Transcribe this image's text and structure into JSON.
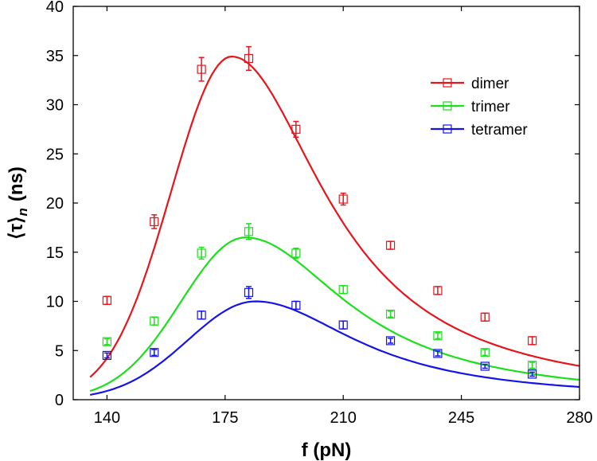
{
  "chart_data": {
    "type": "scatter",
    "title": "",
    "xlabel": "f (pN)",
    "ylabel_main": "⟨τ⟩",
    "ylabel_sub": "n",
    "ylabel_unit": "(ns)",
    "xlim": [
      130,
      280
    ],
    "ylim": [
      0,
      40
    ],
    "xticks": [
      140,
      175,
      210,
      245,
      280
    ],
    "yticks": [
      0,
      5,
      10,
      15,
      20,
      25,
      30,
      35,
      40
    ],
    "grid": false,
    "legend_position": "top-right",
    "x": [
      140,
      154,
      168,
      182,
      196,
      210,
      224,
      238,
      252,
      266
    ],
    "series": [
      {
        "name": "dimer",
        "color": "#e8141b",
        "values": [
          10.1,
          18.1,
          33.6,
          34.7,
          27.5,
          20.4,
          15.7,
          11.1,
          8.4,
          6.0
        ],
        "errors": [
          0.4,
          0.7,
          1.2,
          1.2,
          0.8,
          0.6,
          0.4,
          0.4,
          0.4,
          0.4
        ],
        "fit_peak_x": 177,
        "fit_peak_y": 34.9,
        "fit_sigma_left": 18,
        "fit_scale_right": 34
      },
      {
        "name": "trimer",
        "color": "#1be01b",
        "values": [
          5.9,
          8.0,
          14.9,
          17.1,
          14.9,
          11.2,
          8.7,
          6.5,
          4.8,
          3.5
        ],
        "errors": [
          0.3,
          0.4,
          0.6,
          0.8,
          0.5,
          0.4,
          0.3,
          0.3,
          0.3,
          0.3
        ],
        "fit_peak_x": 181,
        "fit_peak_y": 16.5,
        "fit_sigma_left": 19,
        "fit_scale_right": 37
      },
      {
        "name": "tetramer",
        "color": "#1414e8",
        "values": [
          4.5,
          4.8,
          8.6,
          10.9,
          9.6,
          7.6,
          6.0,
          4.7,
          3.4,
          2.6
        ],
        "errors": [
          0.25,
          0.3,
          0.4,
          0.6,
          0.4,
          0.4,
          0.25,
          0.25,
          0.2,
          0.2
        ],
        "fit_peak_x": 184,
        "fit_peak_y": 10.0,
        "fit_sigma_left": 20,
        "fit_scale_right": 37
      }
    ]
  }
}
